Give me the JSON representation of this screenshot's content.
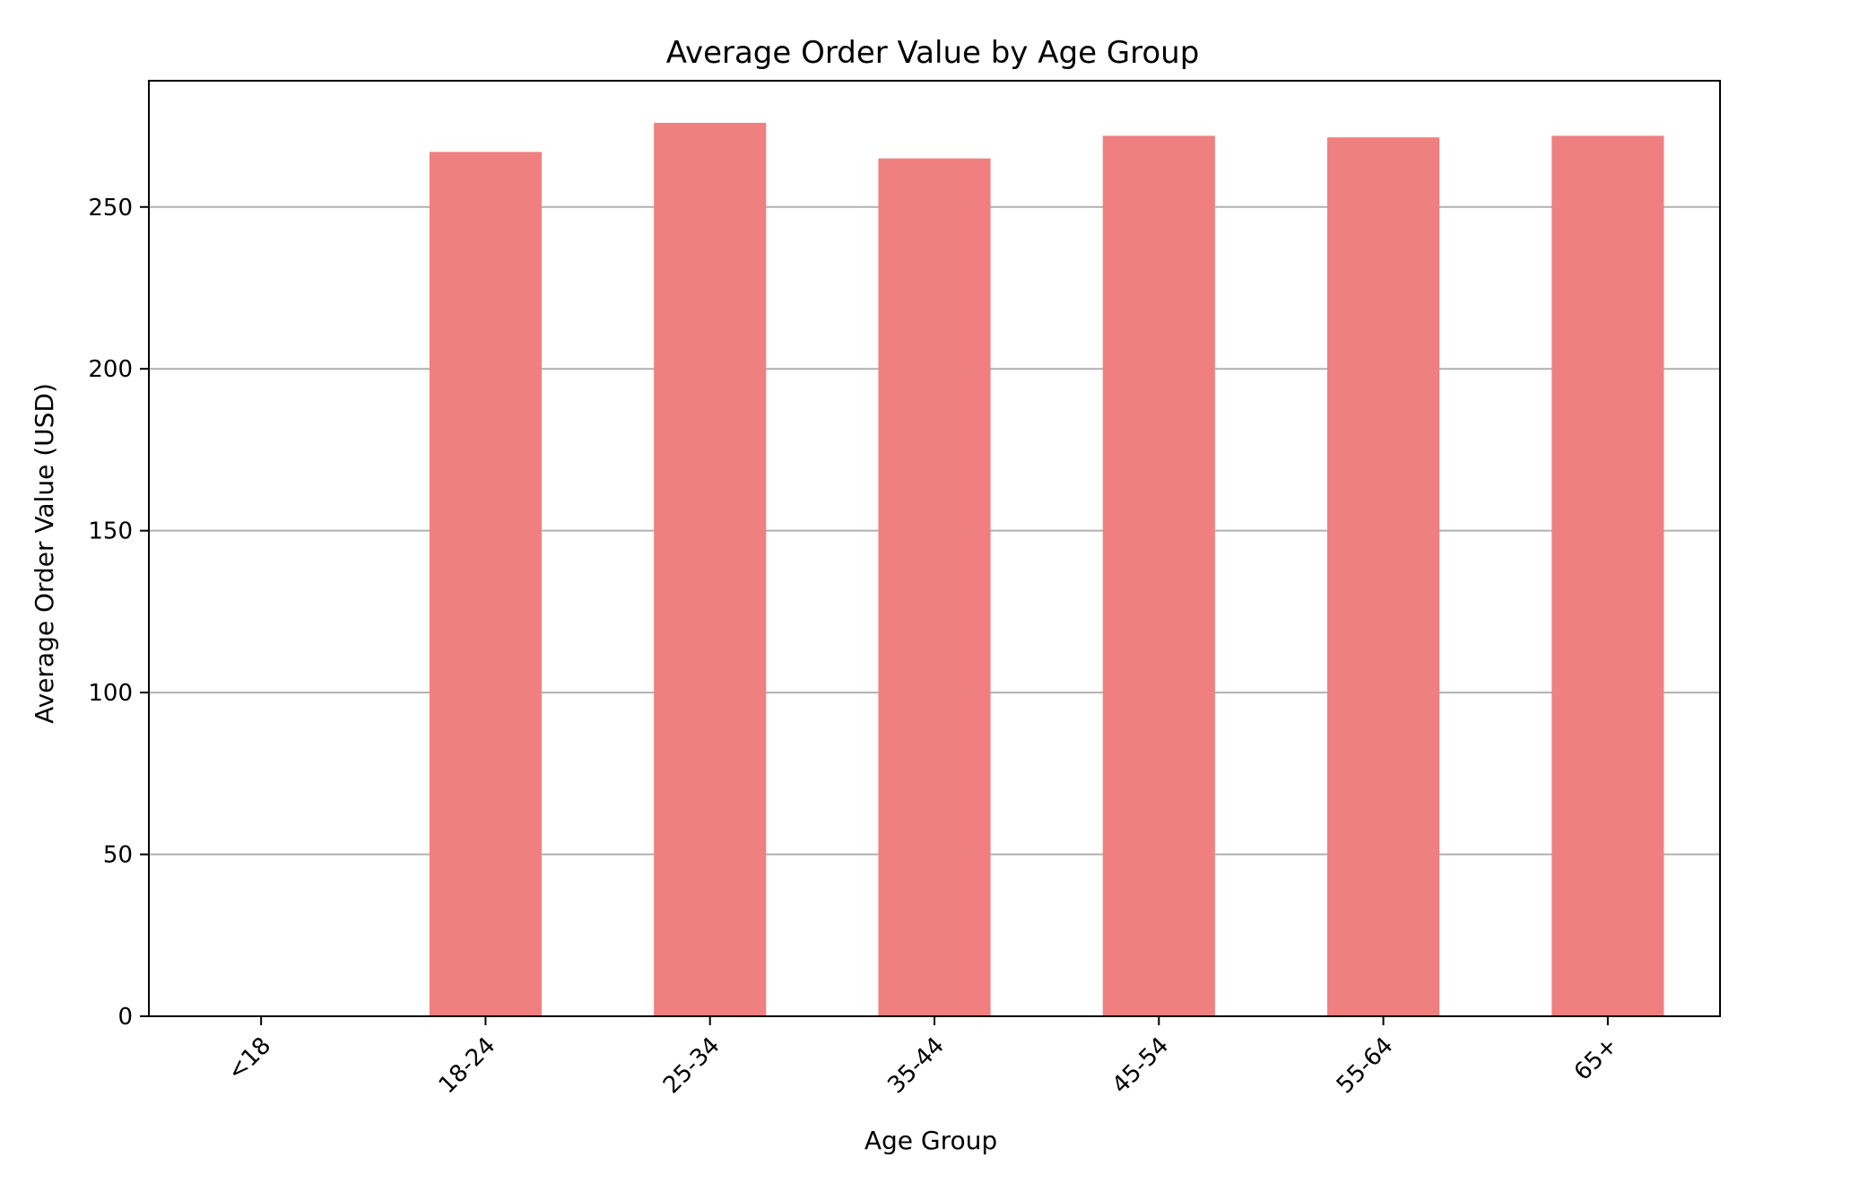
{
  "chart_data": {
    "type": "bar",
    "title": "Average Order Value by Age Group",
    "xlabel": "Age Group",
    "ylabel": "Average Order Value (USD)",
    "categories": [
      "<18",
      "18-24",
      "25-34",
      "35-44",
      "45-54",
      "55-64",
      "65+"
    ],
    "values": [
      0,
      267,
      276,
      265,
      272,
      271.5,
      272
    ],
    "ylim": [
      0,
      289
    ],
    "yticks": [
      "0",
      "50",
      "100",
      "150",
      "200",
      "250"
    ],
    "grid": "y-major",
    "legend": "none",
    "bar_color": "#f08080",
    "grid_color": "#b0b0b0"
  }
}
